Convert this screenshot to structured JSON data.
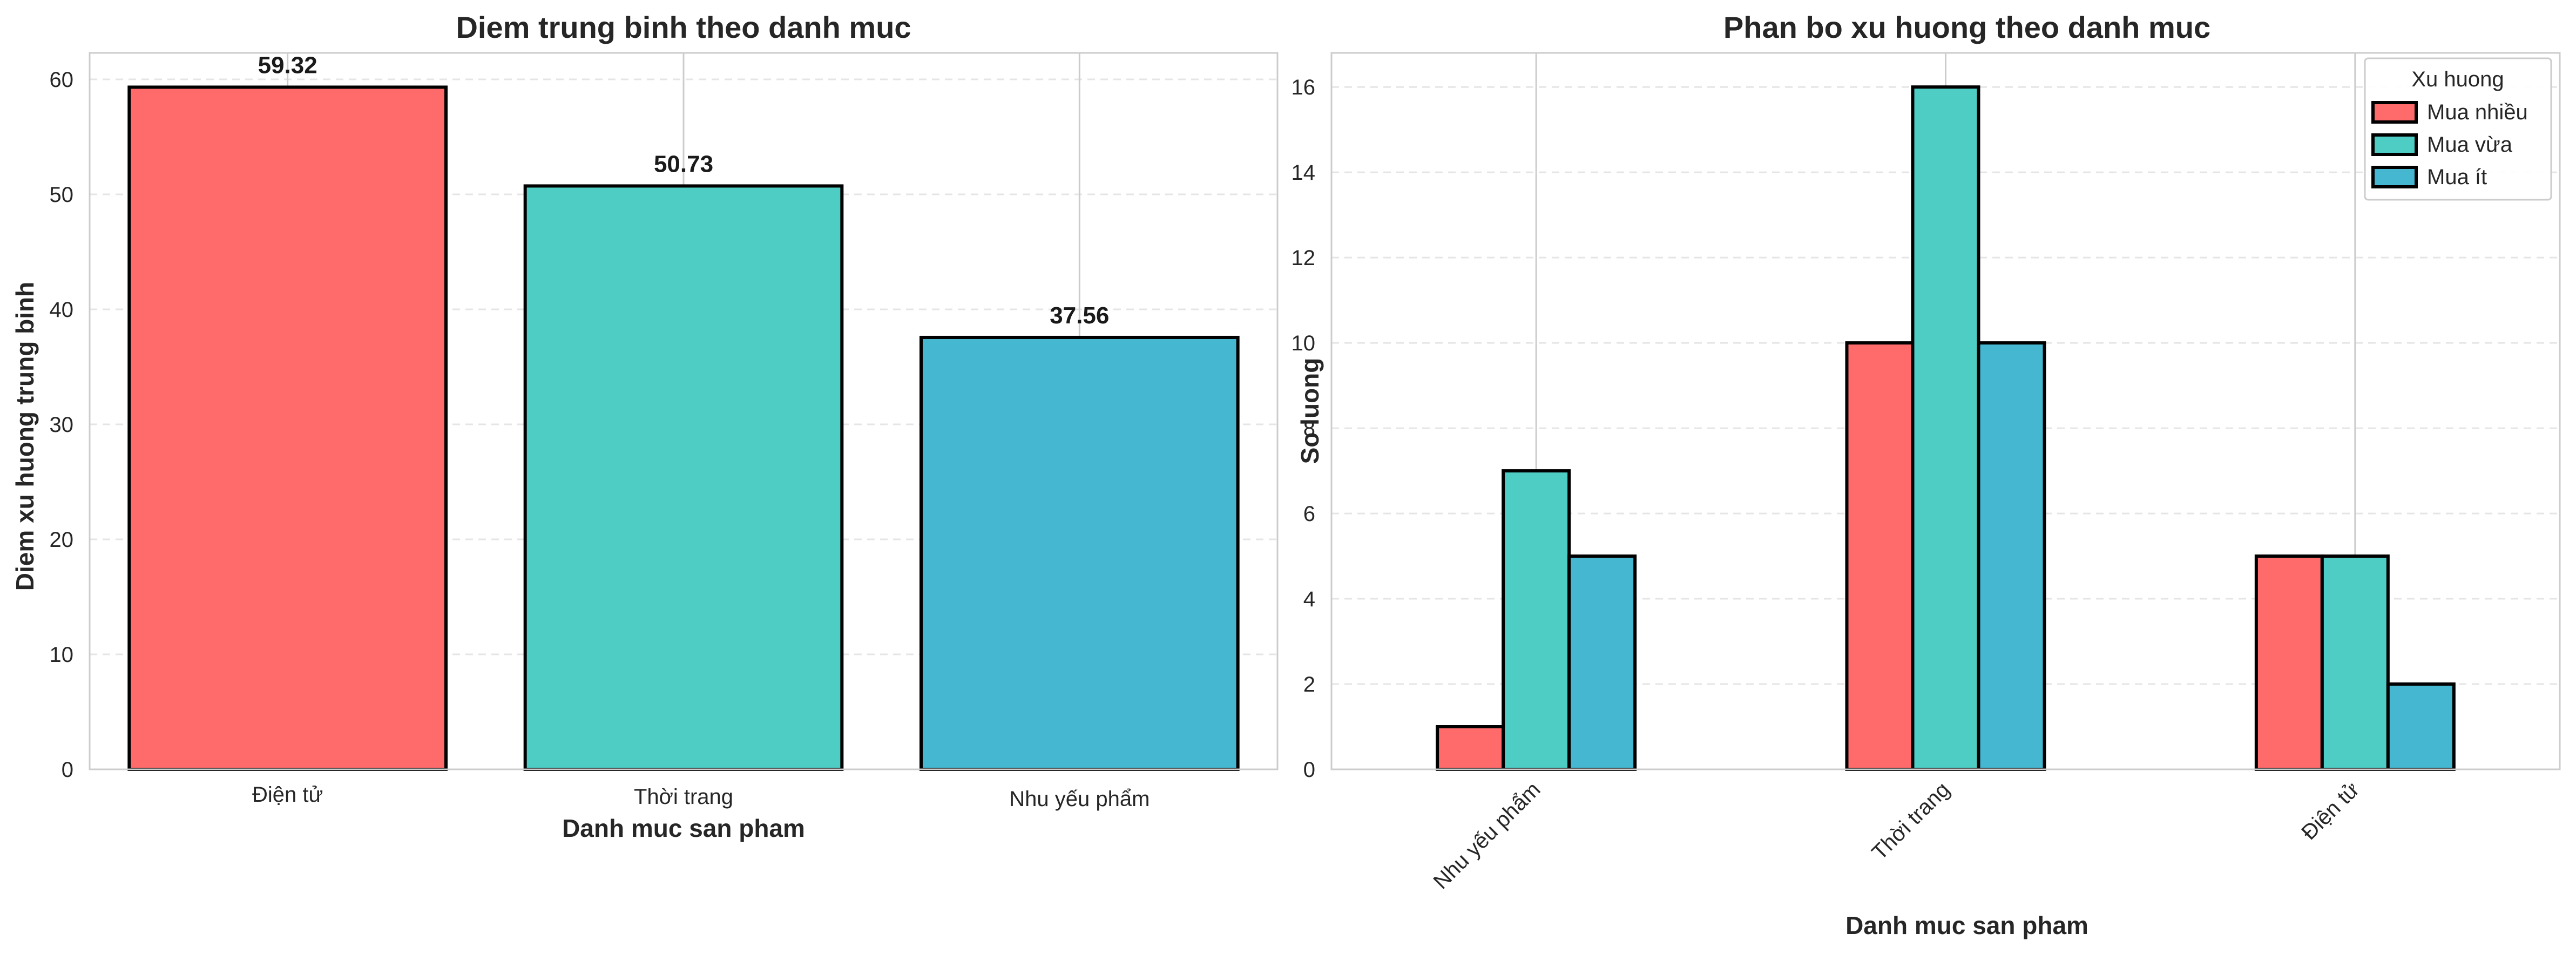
{
  "chart_data": [
    {
      "type": "bar",
      "title": "Diem trung binh theo danh muc",
      "xlabel": "Danh muc san pham",
      "ylabel": "Diem xu huong trung binh",
      "categories": [
        "Điện tử",
        "Thời trang",
        "Nhu yếu phẩm"
      ],
      "values": [
        59.32,
        50.73,
        37.56
      ],
      "value_labels": [
        "59.32",
        "50.73",
        "37.56"
      ],
      "colors": [
        "#FF6B6B",
        "#4ECDC4",
        "#45B7D1"
      ],
      "ylim": [
        0,
        62.3
      ],
      "yticks": [
        0,
        10,
        20,
        30,
        40,
        50,
        60
      ],
      "grid": true
    },
    {
      "type": "bar",
      "title": "Phan bo xu huong theo danh muc",
      "xlabel": "Danh muc san pham",
      "ylabel": "So luong",
      "categories": [
        "Nhu yếu phẩm",
        "Thời trang",
        "Điện tử"
      ],
      "series": [
        {
          "name": "Mua nhiều",
          "values": [
            1,
            10,
            5
          ],
          "color": "#FF6B6B"
        },
        {
          "name": "Mua vừa",
          "values": [
            7,
            16,
            5
          ],
          "color": "#4ECDC4"
        },
        {
          "name": "Mua ít",
          "values": [
            5,
            10,
            2
          ],
          "color": "#45B7D1"
        }
      ],
      "ylim": [
        0,
        16.8
      ],
      "yticks": [
        0,
        2,
        4,
        6,
        8,
        10,
        12,
        14,
        16
      ],
      "legend_title": "Xu huong",
      "legend_position": "top-right",
      "grid": true
    }
  ]
}
